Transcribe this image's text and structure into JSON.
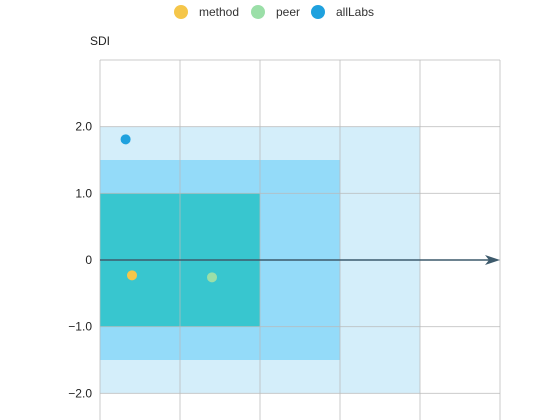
{
  "chart_data": {
    "type": "scatter",
    "ylabel": "SDI",
    "ylim": [
      -2.4,
      3.0
    ],
    "xlim": [
      0,
      5
    ],
    "y_ticks": [
      {
        "value": 2.0,
        "label": "2.0"
      },
      {
        "value": 1.0,
        "label": "1.0"
      },
      {
        "value": 0,
        "label": "0"
      },
      {
        "value": -1.0,
        "label": "−1.0"
      },
      {
        "value": -2.0,
        "label": "−2.0"
      }
    ],
    "grid": true,
    "legend_position": "top-center",
    "bands": [
      {
        "x": [
          0,
          4
        ],
        "y": [
          -2,
          2
        ],
        "color": "#d4eefa"
      },
      {
        "x": [
          0,
          3
        ],
        "y": [
          -1.5,
          1.5
        ],
        "color": "#94dbf9"
      },
      {
        "x": [
          0,
          2
        ],
        "y": [
          -1,
          1
        ],
        "color": "#38c6cf"
      }
    ],
    "zero_arrow": {
      "y": 0,
      "color": "#3d5a6c"
    },
    "series": [
      {
        "name": "method",
        "color": "#f5c64a",
        "x": [
          0.4
        ],
        "y": [
          -0.23
        ]
      },
      {
        "name": "peer",
        "color": "#9bdfa8",
        "x": [
          1.4
        ],
        "y": [
          -0.26
        ]
      },
      {
        "name": "allLabs",
        "color": "#1fa1de",
        "x": [
          0.32
        ],
        "y": [
          1.81
        ]
      }
    ]
  }
}
